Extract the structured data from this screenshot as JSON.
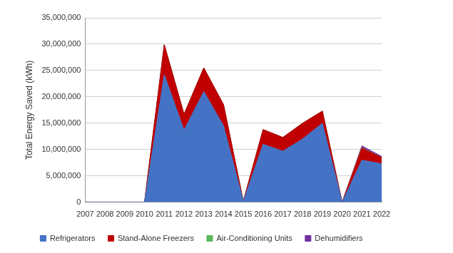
{
  "chart_data": {
    "type": "area",
    "y_label": "Total Energy Saved (kWh)",
    "categories": [
      "2007",
      "2008",
      "2009",
      "2010",
      "2011",
      "2012",
      "2013",
      "2014",
      "2015",
      "2016",
      "2017",
      "2018",
      "2019",
      "2020",
      "2021",
      "2022"
    ],
    "series": [
      {
        "name": "Refrigerators",
        "color": "#4472c4",
        "values": [
          0,
          0,
          0,
          0,
          24200000,
          13700000,
          21000000,
          14500000,
          200000,
          11000000,
          9700000,
          12000000,
          15000000,
          0,
          8000000,
          7300000
        ]
      },
      {
        "name": "Stand-Alone Freezers",
        "color": "#c00000",
        "values": [
          0,
          0,
          0,
          0,
          5700000,
          3000000,
          4500000,
          4000000,
          0,
          2800000,
          2600000,
          3000000,
          2300000,
          0,
          2300000,
          1200000
        ]
      },
      {
        "name": "Air-Conditioning Units",
        "color": "#5cb85c",
        "values": [
          0,
          0,
          0,
          0,
          0,
          0,
          0,
          0,
          0,
          0,
          0,
          0,
          0,
          0,
          100000,
          0
        ]
      },
      {
        "name": "Dehumidifiers",
        "color": "#7030a0",
        "values": [
          0,
          0,
          0,
          0,
          0,
          0,
          0,
          0,
          0,
          0,
          0,
          0,
          0,
          0,
          300000,
          200000
        ]
      }
    ],
    "ylim": [
      0,
      35000000
    ],
    "yticks": [
      {
        "value": 0,
        "label": "0"
      },
      {
        "value": 5000000,
        "label": "5,000,000"
      },
      {
        "value": 10000000,
        "label": "10,000,000"
      },
      {
        "value": 15000000,
        "label": "15,000,000"
      },
      {
        "value": 20000000,
        "label": "20,000,000"
      },
      {
        "value": 25000000,
        "label": "25,000,000"
      },
      {
        "value": 30000000,
        "label": "30,000,000"
      },
      {
        "value": 35000000,
        "label": "35,000,000"
      }
    ],
    "stacked": true,
    "grid": true,
    "legend": "bottom"
  }
}
